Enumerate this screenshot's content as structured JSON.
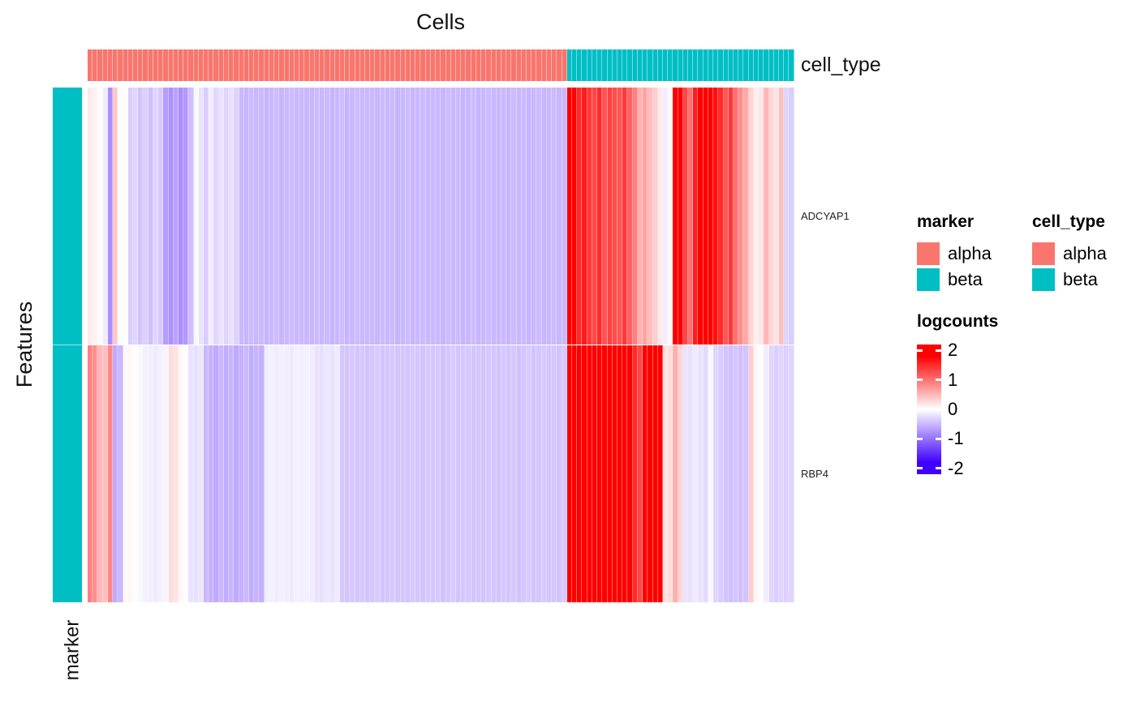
{
  "title": "Cells",
  "axis": {
    "features_label": "Features",
    "marker_axis_label": "marker",
    "cell_type_bar_label": "cell_type"
  },
  "row_labels": [
    "ADCYAP1",
    "RBP4"
  ],
  "colors": {
    "alpha": "#F8766D",
    "beta": "#00BFC4",
    "heat_positive": "#FF0000",
    "heat_zero": "#FFFFFF",
    "heat_negative": "#4000FF"
  },
  "legends": {
    "marker": {
      "title": "marker",
      "items": [
        {
          "label": "alpha",
          "color": "#F8766D"
        },
        {
          "label": "beta",
          "color": "#00BFC4"
        }
      ]
    },
    "cell_type": {
      "title": "cell_type",
      "items": [
        {
          "label": "alpha",
          "color": "#F8766D"
        },
        {
          "label": "beta",
          "color": "#00BFC4"
        }
      ]
    },
    "logcounts": {
      "title": "logcounts",
      "ticks": [
        2,
        1,
        0,
        -1,
        -2
      ]
    }
  },
  "chart_data": {
    "type": "heatmap",
    "title": "Cells",
    "xlabel": "Cells",
    "ylabel": "Features",
    "rows": [
      "ADCYAP1",
      "RBP4"
    ],
    "n_columns": 140,
    "column_annotation": {
      "name": "cell_type",
      "groups": [
        {
          "label": "alpha",
          "color": "#F8766D",
          "count": 95
        },
        {
          "label": "beta",
          "color": "#00BFC4",
          "count": 45
        }
      ]
    },
    "row_annotation": {
      "name": "marker",
      "values": [
        "beta",
        "beta"
      ],
      "colors": {
        "alpha": "#F8766D",
        "beta": "#00BFC4"
      }
    },
    "colorscale": {
      "name": "logcounts",
      "display_min": -2.2,
      "display_max": 2.2,
      "saturate_at": 1.8,
      "ticks": [
        2,
        1,
        0,
        -1,
        -2
      ],
      "negative_color": "#4000FF",
      "zero_color": "#FFFFFF",
      "positive_color": "#FF0000"
    },
    "series": [
      {
        "name": "ADCYAP1",
        "values": [
          0.15,
          0.1,
          0.02,
          -0.15,
          -0.8,
          0.4,
          0.02,
          0.01,
          -0.35,
          -0.3,
          -0.42,
          -0.33,
          -0.45,
          -0.3,
          -0.38,
          -0.7,
          -0.78,
          -0.65,
          -0.8,
          -0.72,
          -0.45,
          -0.05,
          -0.2,
          -0.35,
          -0.12,
          -0.28,
          -0.2,
          -0.3,
          -0.22,
          -0.32,
          -0.5,
          -0.52,
          -0.48,
          -0.51,
          -0.49,
          -0.53,
          -0.5,
          -0.47,
          -0.52,
          -0.5,
          -0.48,
          -0.51,
          -0.5,
          -0.5,
          -0.52,
          -0.48,
          -0.51,
          -0.49,
          -0.53,
          -0.5,
          -0.47,
          -0.52,
          -0.5,
          -0.48,
          -0.51,
          -0.5,
          -0.5,
          -0.52,
          -0.48,
          -0.51,
          -0.49,
          -0.53,
          -0.5,
          -0.47,
          -0.52,
          -0.5,
          -0.48,
          -0.51,
          -0.5,
          -0.5,
          -0.52,
          -0.48,
          -0.51,
          -0.49,
          -0.53,
          -0.5,
          -0.47,
          -0.52,
          -0.5,
          -0.48,
          -0.51,
          -0.5,
          -0.5,
          -0.52,
          -0.48,
          -0.51,
          -0.49,
          -0.53,
          -0.5,
          -0.47,
          -0.52,
          -0.5,
          -0.48,
          -0.51,
          -0.5,
          2.2,
          1.8,
          1.5,
          1.6,
          1.4,
          1.3,
          1.5,
          1.2,
          1.35,
          1.25,
          1.2,
          1.4,
          1.1,
          0.9,
          0.55,
          0.65,
          0.45,
          0.35,
          0.15,
          -0.12,
          0.05,
          2.2,
          1.9,
          1.3,
          1.0,
          1.6,
          2.1,
          1.8,
          2.2,
          1.7,
          1.5,
          1.2,
          1.4,
          1.0,
          0.8,
          0.6,
          0.3,
          0.12,
          0.18,
          0.5,
          0.3,
          0.2,
          0.45,
          -0.3,
          -0.35
        ]
      },
      {
        "name": "RBP4",
        "values": [
          0.9,
          0.8,
          0.5,
          0.45,
          0.85,
          -0.6,
          -0.5,
          0.05,
          0.06,
          0.02,
          -0.06,
          -0.1,
          -0.12,
          -0.15,
          -0.1,
          -0.08,
          0.25,
          0.2,
          0.05,
          0.02,
          -0.2,
          -0.22,
          -0.18,
          -0.5,
          -0.55,
          -0.6,
          -0.5,
          -0.58,
          -0.52,
          -0.6,
          -0.55,
          -0.5,
          -0.58,
          -0.53,
          -0.56,
          -0.12,
          -0.1,
          -0.14,
          -0.1,
          -0.12,
          -0.15,
          -0.1,
          -0.12,
          -0.1,
          -0.14,
          -0.2,
          -0.22,
          -0.18,
          -0.2,
          -0.15,
          -0.4,
          -0.42,
          -0.38,
          -0.41,
          -0.39,
          -0.43,
          -0.4,
          -0.37,
          -0.42,
          -0.4,
          -0.38,
          -0.41,
          -0.4,
          -0.42,
          -0.38,
          -0.4,
          -0.42,
          -0.38,
          -0.41,
          -0.39,
          -0.43,
          -0.4,
          -0.37,
          -0.42,
          -0.4,
          -0.38,
          -0.41,
          -0.4,
          -0.42,
          -0.38,
          -0.4,
          -0.42,
          -0.38,
          -0.41,
          -0.39,
          -0.43,
          -0.4,
          -0.37,
          -0.42,
          -0.4,
          -0.38,
          -0.41,
          -0.4,
          -0.42,
          -0.38,
          2.4,
          2.3,
          2.5,
          2.4,
          2.35,
          2.45,
          2.3,
          2.4,
          2.5,
          2.35,
          2.4,
          2.3,
          2.45,
          1.5,
          1.3,
          2.4,
          2.3,
          2.4,
          2.2,
          0.2,
          0.25,
          0.55,
          0.3,
          -0.2,
          -0.22,
          -0.15,
          -0.2,
          -0.25,
          -0.05,
          -0.3,
          -0.35,
          -0.42,
          -0.45,
          -0.4,
          -0.45,
          -0.42,
          0.35,
          0.05,
          0.02,
          -0.12,
          -0.3,
          -0.35,
          -0.3,
          -0.33,
          -0.3
        ]
      }
    ]
  }
}
